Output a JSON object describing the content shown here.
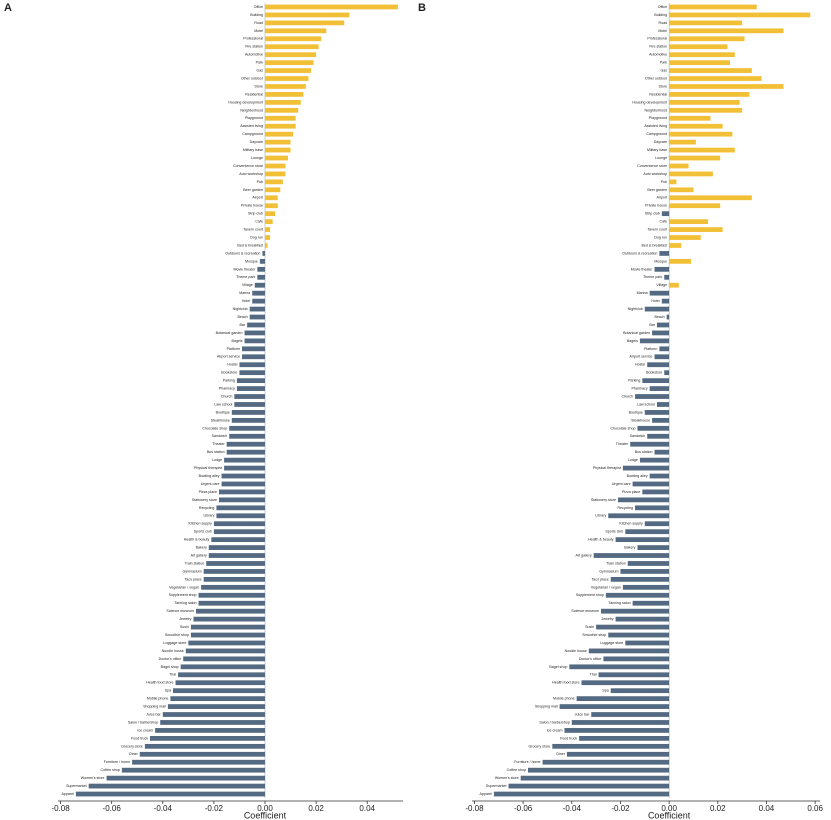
{
  "chart_data": [
    {
      "type": "bar",
      "orientation": "horizontal",
      "title": "A",
      "xlabel": "Coefficient",
      "positive_color": "#f2c037",
      "negative_color": "#536a82",
      "categories": [
        "Office",
        "Building",
        "Road",
        "Motel",
        "Professional",
        "Fire station",
        "Automotive",
        "Park",
        "Gas",
        "Other outdoor",
        "Store",
        "Residential",
        "Housing development",
        "Neighborhood",
        "Playground",
        "Assisted living",
        "Campground",
        "Daycare",
        "Military base",
        "Lounge",
        "Convenience store",
        "Auto workshop",
        "Pub",
        "Beer garden",
        "Airport",
        "Private house",
        "Strip club",
        "Cafe",
        "Tavern court",
        "Dog run",
        "Bed & breakfast",
        "Outdoors & recreation",
        "Mosque",
        "Movie theater",
        "Theme park",
        "Village",
        "Marina",
        "Hotel",
        "Nightclub",
        "Beach",
        "Bar",
        "Botanical garden",
        "Bagels",
        "Platform",
        "Airport service",
        "Hostel",
        "Bookstore",
        "Parking",
        "Pharmacy",
        "Church",
        "Law school",
        "Boutique",
        "Steakhouse",
        "Chocolate shop",
        "Sandwich",
        "Theater",
        "Bus station",
        "Lodge",
        "Physical therapist",
        "Bowling alley",
        "Urgent care",
        "Pizza place",
        "Stationery store",
        "Recycling",
        "Library",
        "Kitchen supply",
        "Sports club",
        "Health & beauty",
        "Bakery",
        "Art gallery",
        "Train station",
        "Gymnasium",
        "Taco place",
        "Vegetarian / vegan",
        "Supplement shop",
        "Tanning salon",
        "Science museum",
        "Jewelry",
        "Sushi",
        "Smoothie shop",
        "Luggage store",
        "Noodle house",
        "Doctor's office",
        "Bagel shop",
        "Thai",
        "Health food store",
        "Spa",
        "Mobile phone",
        "Shopping mall",
        "Juice bar",
        "Salon / barbershop",
        "Ice cream",
        "Food truck",
        "Grocery store",
        "Diner",
        "Furniture / home",
        "Coffee shop",
        "Women's store",
        "Supermarket",
        "Apparel"
      ],
      "values": [
        0.052,
        0.033,
        0.031,
        0.024,
        0.022,
        0.021,
        0.02,
        0.019,
        0.018,
        0.017,
        0.016,
        0.015,
        0.014,
        0.013,
        0.012,
        0.012,
        0.011,
        0.01,
        0.01,
        0.009,
        0.008,
        0.008,
        0.007,
        0.006,
        0.005,
        0.005,
        0.004,
        0.003,
        0.002,
        0.002,
        0.001,
        -0.001,
        -0.002,
        -0.003,
        -0.003,
        -0.004,
        -0.005,
        -0.005,
        -0.006,
        -0.006,
        -0.007,
        -0.008,
        -0.008,
        -0.009,
        -0.009,
        -0.01,
        -0.01,
        -0.011,
        -0.011,
        -0.012,
        -0.012,
        -0.013,
        -0.013,
        -0.014,
        -0.014,
        -0.015,
        -0.015,
        -0.016,
        -0.016,
        -0.017,
        -0.017,
        -0.018,
        -0.018,
        -0.019,
        -0.019,
        -0.02,
        -0.02,
        -0.021,
        -0.022,
        -0.022,
        -0.023,
        -0.024,
        -0.024,
        -0.025,
        -0.026,
        -0.026,
        -0.027,
        -0.028,
        -0.029,
        -0.029,
        -0.03,
        -0.031,
        -0.032,
        -0.033,
        -0.034,
        -0.035,
        -0.036,
        -0.037,
        -0.038,
        -0.04,
        -0.041,
        -0.043,
        -0.045,
        -0.047,
        -0.049,
        -0.052,
        -0.056,
        -0.062,
        -0.069,
        -0.074
      ],
      "xlim": [
        -0.081,
        0.054
      ],
      "xticks": [
        -0.08,
        -0.06,
        -0.04,
        -0.02,
        {
          "value": 0,
          "label": "0.00"
        },
        0.02,
        0.04
      ]
    },
    {
      "type": "bar",
      "orientation": "horizontal",
      "title": "B",
      "xlabel": "Coefficient",
      "positive_color": "#f2c037",
      "negative_color": "#536a82",
      "values": [
        0.036,
        0.058,
        0.03,
        0.047,
        0.031,
        0.024,
        0.027,
        0.025,
        0.034,
        0.038,
        0.047,
        0.033,
        0.029,
        0.03,
        0.017,
        0.022,
        0.026,
        0.011,
        0.027,
        0.021,
        0.008,
        0.018,
        0.003,
        0.01,
        0.034,
        0.021,
        -0.003,
        0.016,
        0.022,
        0.013,
        0.005,
        -0.004,
        0.009,
        -0.006,
        -0.002,
        0.004,
        -0.008,
        -0.003,
        -0.01,
        -0.001,
        -0.005,
        -0.007,
        -0.012,
        -0.004,
        -0.006,
        -0.009,
        -0.002,
        -0.011,
        -0.008,
        -0.014,
        -0.005,
        -0.01,
        -0.007,
        -0.013,
        -0.009,
        -0.016,
        -0.006,
        -0.012,
        -0.019,
        -0.008,
        -0.015,
        -0.011,
        -0.021,
        -0.014,
        -0.025,
        -0.01,
        -0.018,
        -0.022,
        -0.013,
        -0.031,
        -0.017,
        -0.02,
        -0.024,
        -0.019,
        -0.026,
        -0.015,
        -0.028,
        -0.022,
        -0.03,
        -0.025,
        -0.018,
        -0.033,
        -0.027,
        -0.041,
        -0.029,
        -0.036,
        -0.024,
        -0.038,
        -0.045,
        -0.032,
        -0.04,
        -0.043,
        -0.037,
        -0.048,
        -0.042,
        -0.052,
        -0.058,
        -0.061,
        -0.066,
        -0.072
      ],
      "xlim": [
        -0.081,
        0.062
      ],
      "xticks": [
        -0.08,
        -0.06,
        -0.04,
        -0.02,
        {
          "value": 0,
          "label": "0.00"
        },
        0.02,
        0.04,
        0.06
      ]
    }
  ]
}
